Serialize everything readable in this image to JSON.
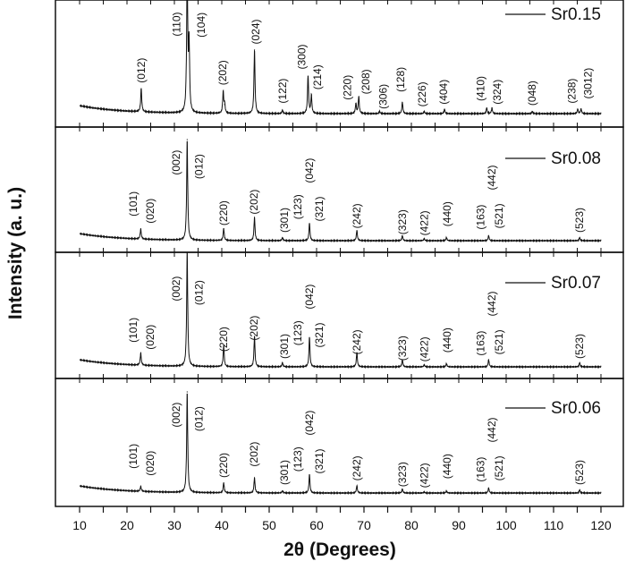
{
  "chart_data": {
    "type": "line",
    "xlabel": "2θ (Degrees)",
    "ylabel": "Intensity (a. u.)",
    "xlim": [
      10,
      120
    ],
    "xticks": [
      10,
      20,
      30,
      40,
      50,
      60,
      70,
      80,
      90,
      100,
      110,
      120
    ],
    "grid": false,
    "legend_placement": "top-right",
    "panels": [
      {
        "name": "Sr0.15",
        "peaks": [
          {
            "x": 23.0,
            "h": 21
          },
          {
            "x": 32.7,
            "h": 130
          },
          {
            "x": 33.1,
            "h": 60
          },
          {
            "x": 40.3,
            "h": 19
          },
          {
            "x": 40.6,
            "h": 8
          },
          {
            "x": 46.9,
            "h": 56
          },
          {
            "x": 52.8,
            "h": 3
          },
          {
            "x": 58.2,
            "h": 33
          },
          {
            "x": 58.9,
            "h": 16
          },
          {
            "x": 68.3,
            "h": 9
          },
          {
            "x": 68.9,
            "h": 15
          },
          {
            "x": 73.3,
            "h": 2
          },
          {
            "x": 78.1,
            "h": 10
          },
          {
            "x": 82.7,
            "h": 2
          },
          {
            "x": 87.0,
            "h": 4
          },
          {
            "x": 95.9,
            "h": 5
          },
          {
            "x": 97.0,
            "h": 5
          },
          {
            "x": 105.5,
            "h": 2
          },
          {
            "x": 115.1,
            "h": 4
          },
          {
            "x": 115.8,
            "h": 4
          }
        ],
        "labels": [
          {
            "text": "(012)",
            "x": 23.0,
            "y": 27
          },
          {
            "text": "(110)",
            "x": 30.5,
            "y": 68
          },
          {
            "text": "(104)",
            "x": 35.7,
            "y": 67
          },
          {
            "text": "(202)",
            "x": 40.2,
            "y": 25
          },
          {
            "text": "(024)",
            "x": 47.2,
            "y": 61
          },
          {
            "text": "(122)",
            "x": 52.8,
            "y": 9
          },
          {
            "text": "(300)",
            "x": 56.9,
            "y": 39
          },
          {
            "text": "(214)",
            "x": 60.2,
            "y": 21
          },
          {
            "text": "(220)",
            "x": 66.5,
            "y": 12
          },
          {
            "text": "(208)",
            "x": 70.4,
            "y": 17
          },
          {
            "text": "(306)",
            "x": 74.1,
            "y": 4
          },
          {
            "text": "(128)",
            "x": 77.7,
            "y": 19
          },
          {
            "text": "(226)",
            "x": 82.3,
            "y": 6
          },
          {
            "text": "(404)",
            "x": 86.8,
            "y": 8
          },
          {
            "text": "(410)",
            "x": 94.6,
            "y": 11
          },
          {
            "text": "(324)",
            "x": 98.1,
            "y": 8
          },
          {
            "text": "(048)",
            "x": 105.5,
            "y": 7
          },
          {
            "text": "(238)",
            "x": 113.9,
            "y": 9
          },
          {
            "text": "(3012)",
            "x": 117.3,
            "y": 13
          }
        ]
      },
      {
        "name": "Sr0.08",
        "peaks": [
          {
            "x": 22.9,
            "h": 10
          },
          {
            "x": 32.7,
            "h": 100
          },
          {
            "x": 40.4,
            "h": 12
          },
          {
            "x": 46.9,
            "h": 23
          },
          {
            "x": 52.8,
            "h": 3
          },
          {
            "x": 58.5,
            "h": 17
          },
          {
            "x": 68.5,
            "h": 10
          },
          {
            "x": 78.1,
            "h": 5
          },
          {
            "x": 82.7,
            "h": 2
          },
          {
            "x": 87.4,
            "h": 3
          },
          {
            "x": 96.3,
            "h": 5
          },
          {
            "x": 115.5,
            "h": 3
          }
        ],
        "labels": [
          {
            "text": "(101)",
            "x": 21.3,
            "y": 24
          },
          {
            "text": "(020)",
            "x": 24.9,
            "y": 17
          },
          {
            "text": "(002)",
            "x": 30.4,
            "y": 65
          },
          {
            "text": "(012)",
            "x": 35.2,
            "y": 61
          },
          {
            "text": "(220)",
            "x": 40.4,
            "y": 15
          },
          {
            "text": "(202)",
            "x": 46.8,
            "y": 26
          },
          {
            "text": "(301)",
            "x": 53.2,
            "y": 8
          },
          {
            "text": "(123)",
            "x": 56.0,
            "y": 21
          },
          {
            "text": "(042)",
            "x": 58.5,
            "y": 57
          },
          {
            "text": "(321)",
            "x": 60.6,
            "y": 19
          },
          {
            "text": "(242)",
            "x": 68.5,
            "y": 12
          },
          {
            "text": "(323)",
            "x": 78.1,
            "y": 6
          },
          {
            "text": "(422)",
            "x": 82.7,
            "y": 5
          },
          {
            "text": "(440)",
            "x": 87.5,
            "y": 14
          },
          {
            "text": "(163)",
            "x": 94.6,
            "y": 11
          },
          {
            "text": "(442)",
            "x": 97.0,
            "y": 50
          },
          {
            "text": "(521)",
            "x": 98.5,
            "y": 12
          },
          {
            "text": "(523)",
            "x": 115.5,
            "y": 8
          }
        ]
      },
      {
        "name": "Sr0.07",
        "peaks": [
          {
            "x": 22.9,
            "h": 12
          },
          {
            "x": 32.7,
            "h": 115
          },
          {
            "x": 40.4,
            "h": 21
          },
          {
            "x": 46.9,
            "h": 30
          },
          {
            "x": 52.8,
            "h": 4
          },
          {
            "x": 58.5,
            "h": 29
          },
          {
            "x": 68.5,
            "h": 14
          },
          {
            "x": 78.1,
            "h": 7
          },
          {
            "x": 82.7,
            "h": 2
          },
          {
            "x": 87.4,
            "h": 3
          },
          {
            "x": 96.3,
            "h": 7
          },
          {
            "x": 115.5,
            "h": 4
          }
        ],
        "labels": [
          {
            "text": "(101)",
            "x": 21.3,
            "y": 24
          },
          {
            "text": "(020)",
            "x": 24.9,
            "y": 17
          },
          {
            "text": "(002)",
            "x": 30.4,
            "y": 65
          },
          {
            "text": "(012)",
            "x": 35.2,
            "y": 61
          },
          {
            "text": "(220)",
            "x": 40.4,
            "y": 15
          },
          {
            "text": "(202)",
            "x": 46.8,
            "y": 26
          },
          {
            "text": "(301)",
            "x": 53.2,
            "y": 8
          },
          {
            "text": "(123)",
            "x": 56.0,
            "y": 21
          },
          {
            "text": "(042)",
            "x": 58.5,
            "y": 57
          },
          {
            "text": "(321)",
            "x": 60.6,
            "y": 19
          },
          {
            "text": "(242)",
            "x": 68.5,
            "y": 12
          },
          {
            "text": "(323)",
            "x": 78.1,
            "y": 6
          },
          {
            "text": "(422)",
            "x": 82.7,
            "y": 5
          },
          {
            "text": "(440)",
            "x": 87.5,
            "y": 14
          },
          {
            "text": "(163)",
            "x": 94.6,
            "y": 11
          },
          {
            "text": "(442)",
            "x": 97.0,
            "y": 50
          },
          {
            "text": "(521)",
            "x": 98.5,
            "y": 12
          },
          {
            "text": "(523)",
            "x": 115.5,
            "y": 8
          }
        ]
      },
      {
        "name": "Sr0.06",
        "peaks": [
          {
            "x": 22.9,
            "h": 5
          },
          {
            "x": 32.7,
            "h": 100
          },
          {
            "x": 40.4,
            "h": 10
          },
          {
            "x": 46.9,
            "h": 15
          },
          {
            "x": 52.8,
            "h": 2
          },
          {
            "x": 58.5,
            "h": 18
          },
          {
            "x": 68.5,
            "h": 7
          },
          {
            "x": 78.1,
            "h": 4
          },
          {
            "x": 82.7,
            "h": 1
          },
          {
            "x": 87.4,
            "h": 2
          },
          {
            "x": 96.3,
            "h": 5
          },
          {
            "x": 115.5,
            "h": 3
          }
        ],
        "labels": [
          {
            "text": "(101)",
            "x": 21.3,
            "y": 24
          },
          {
            "text": "(020)",
            "x": 24.9,
            "y": 17
          },
          {
            "text": "(002)",
            "x": 30.4,
            "y": 65
          },
          {
            "text": "(012)",
            "x": 35.2,
            "y": 61
          },
          {
            "text": "(220)",
            "x": 40.4,
            "y": 15
          },
          {
            "text": "(202)",
            "x": 46.8,
            "y": 26
          },
          {
            "text": "(301)",
            "x": 53.2,
            "y": 8
          },
          {
            "text": "(123)",
            "x": 56.0,
            "y": 21
          },
          {
            "text": "(042)",
            "x": 58.5,
            "y": 57
          },
          {
            "text": "(321)",
            "x": 60.6,
            "y": 19
          },
          {
            "text": "(242)",
            "x": 68.5,
            "y": 12
          },
          {
            "text": "(323)",
            "x": 78.1,
            "y": 6
          },
          {
            "text": "(422)",
            "x": 82.7,
            "y": 5
          },
          {
            "text": "(440)",
            "x": 87.5,
            "y": 14
          },
          {
            "text": "(163)",
            "x": 94.6,
            "y": 11
          },
          {
            "text": "(442)",
            "x": 97.0,
            "y": 50
          },
          {
            "text": "(521)",
            "x": 98.5,
            "y": 12
          },
          {
            "text": "(523)",
            "x": 115.5,
            "y": 8
          }
        ]
      }
    ]
  }
}
